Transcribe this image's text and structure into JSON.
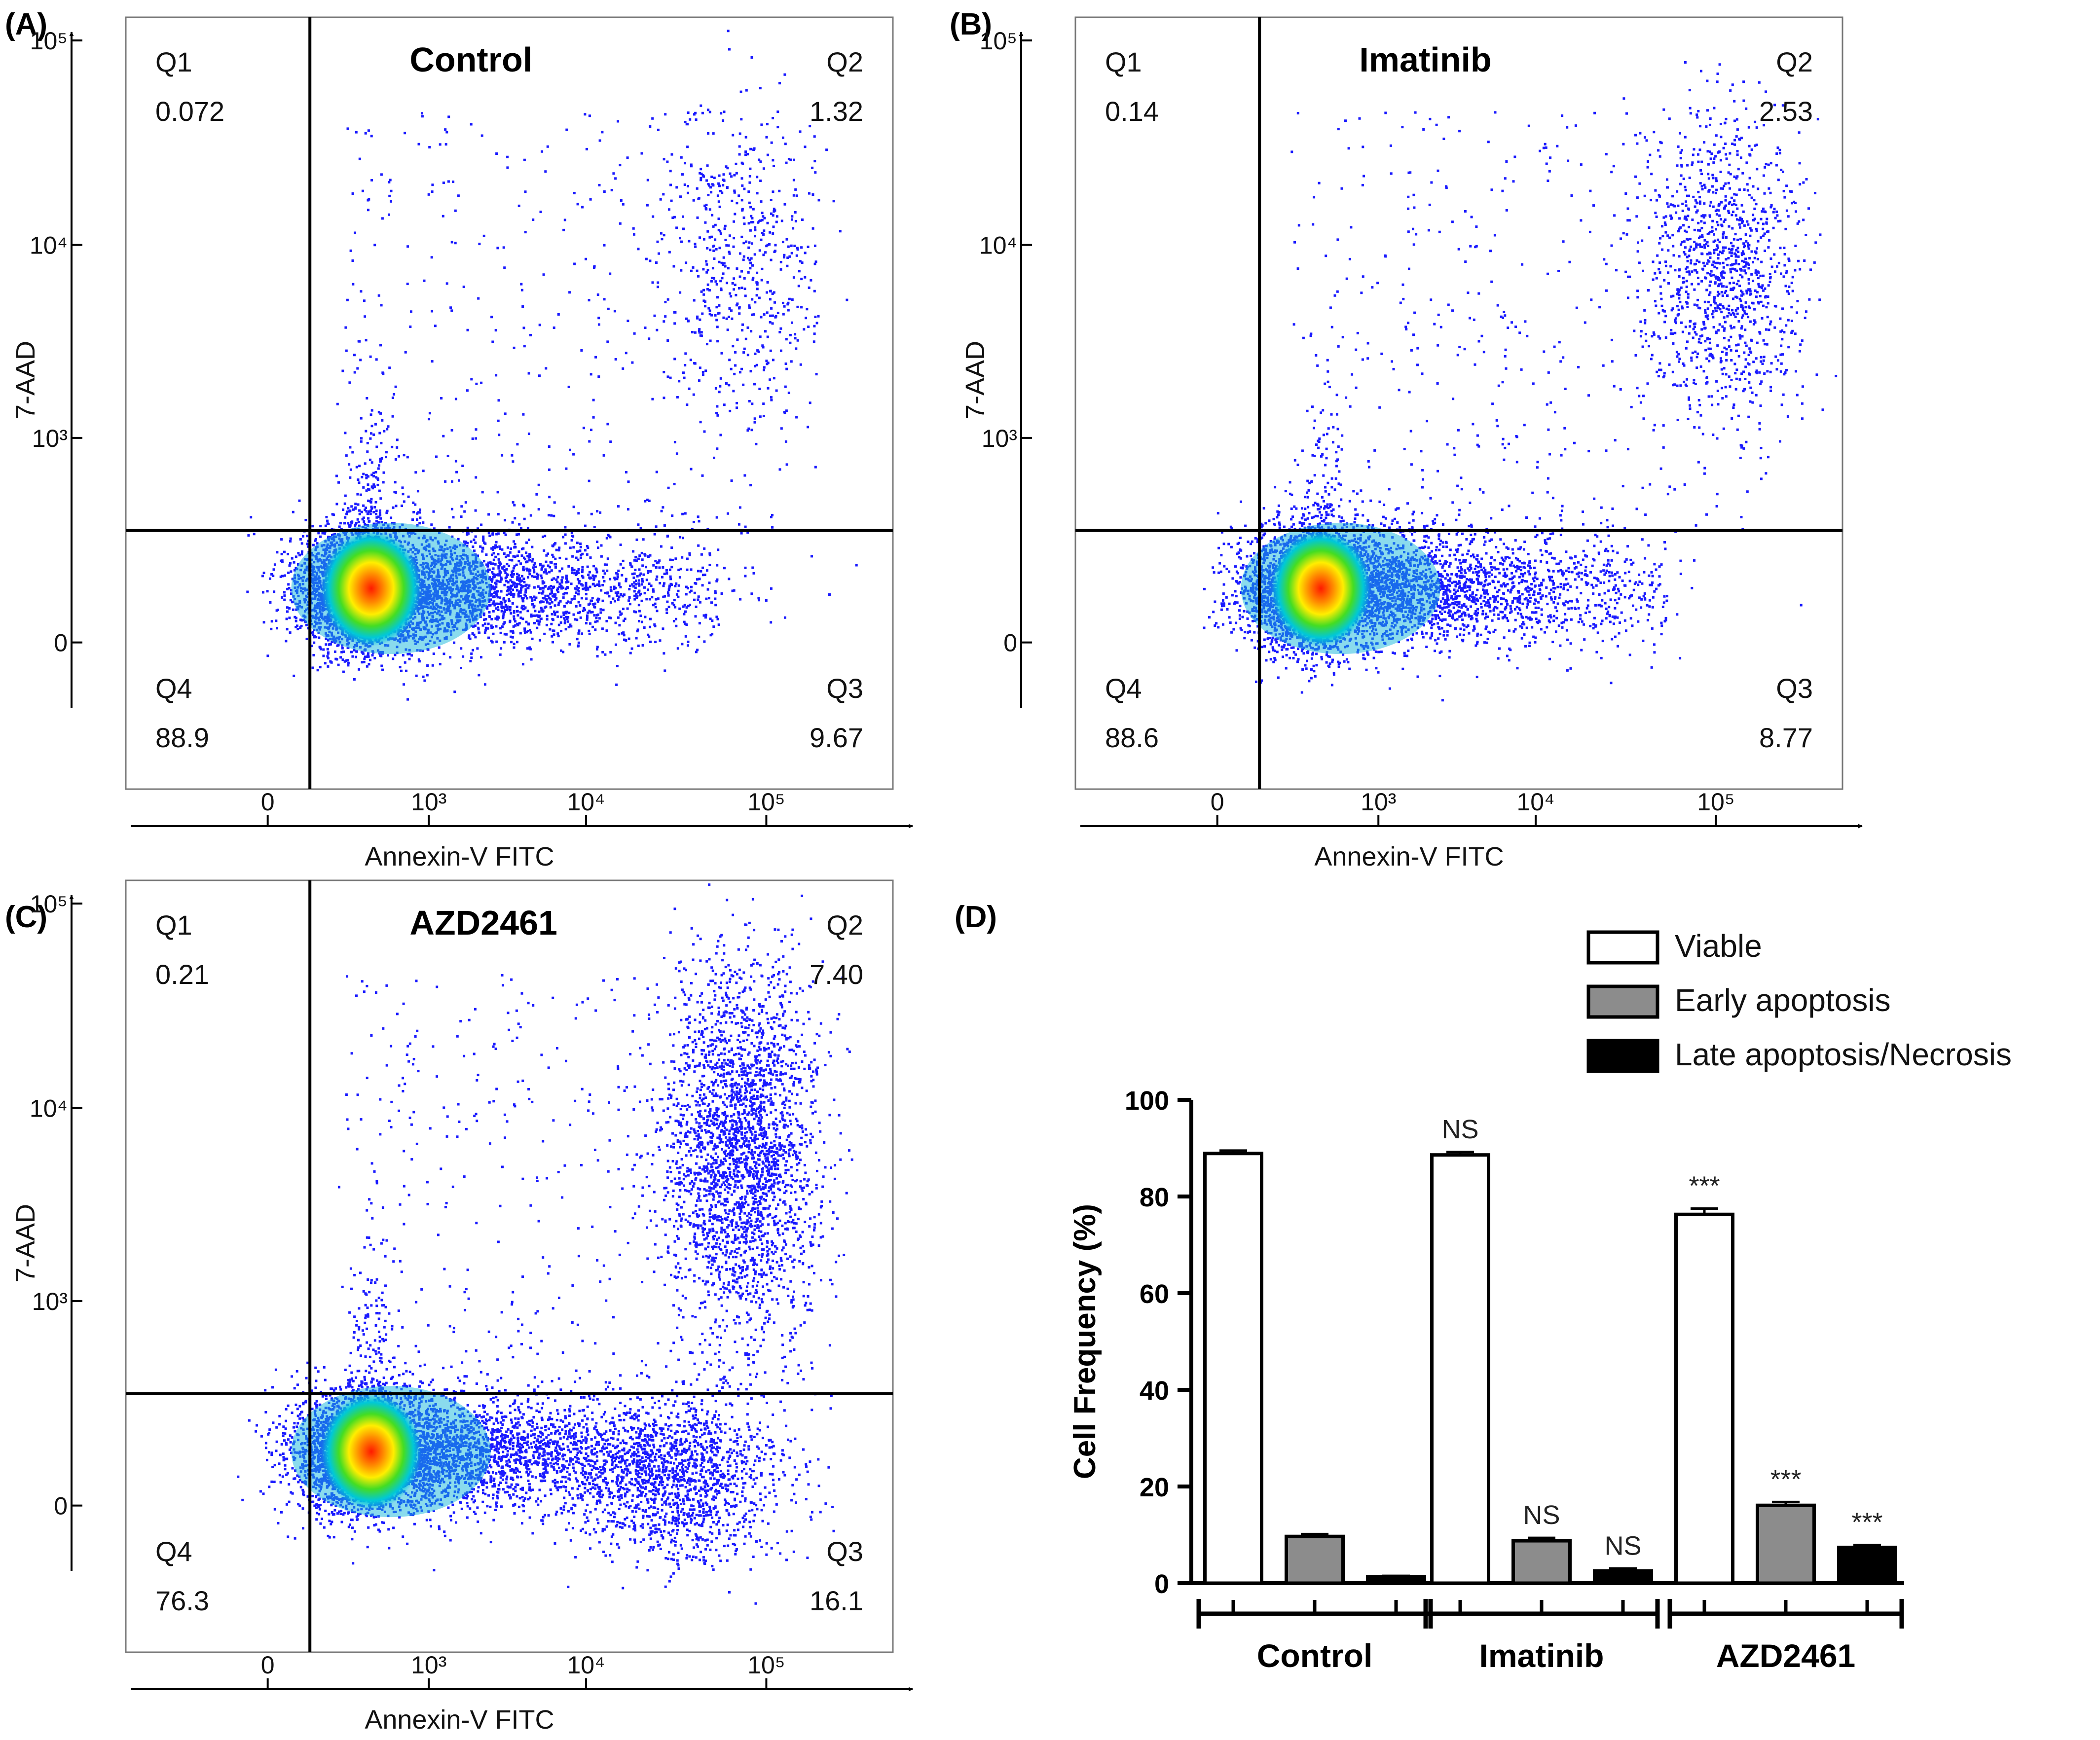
{
  "figure": {
    "panel_labels": [
      "(A)",
      "(B)",
      "(C)",
      "(D)"
    ]
  },
  "flow_panels": [
    {
      "panel": "(A)",
      "title": "Control",
      "quadrants": {
        "Q1": "0.072",
        "Q2": "1.32",
        "Q3": "9.67",
        "Q4": "88.9"
      },
      "late_density": "sparse"
    },
    {
      "panel": "(B)",
      "title": "Imatinib",
      "quadrants": {
        "Q1": "0.14",
        "Q2": "2.53",
        "Q3": "8.77",
        "Q4": "88.6"
      },
      "late_density": "medium"
    },
    {
      "panel": "(C)",
      "title": "AZD2461",
      "quadrants": {
        "Q1": "0.21",
        "Q2": "7.40",
        "Q3": "16.1",
        "Q4": "76.3"
      },
      "late_density": "dense"
    }
  ],
  "flow_axes": {
    "xlabel": "Annexin-V FITC",
    "ylabel": "7-AAD",
    "x_ticks": [
      "0",
      "10³",
      "10⁴",
      "10⁵"
    ],
    "y_ticks": [
      "0",
      "10³",
      "10⁴",
      "10⁵"
    ],
    "quadrant_names": [
      "Q1",
      "Q2",
      "Q3",
      "Q4"
    ]
  },
  "chart_data": [
    {
      "type": "scatter",
      "subtype": "flow-cytometry-density",
      "panel": "(A)",
      "title": "Control",
      "xlabel": "Annexin-V FITC",
      "ylabel": "7-AAD",
      "x_scale": "biexponential",
      "y_scale": "biexponential",
      "x_ticks": [
        "0",
        "10³",
        "10⁴",
        "10⁵"
      ],
      "y_ticks": [
        "0",
        "10³",
        "10⁴",
        "10⁵"
      ],
      "quadrant_percent": {
        "Q1": 0.072,
        "Q2": 1.32,
        "Q3": 9.67,
        "Q4": 88.9
      }
    },
    {
      "type": "scatter",
      "subtype": "flow-cytometry-density",
      "panel": "(B)",
      "title": "Imatinib",
      "xlabel": "Annexin-V FITC",
      "ylabel": "7-AAD",
      "x_scale": "biexponential",
      "y_scale": "biexponential",
      "x_ticks": [
        "0",
        "10³",
        "10⁴",
        "10⁵"
      ],
      "y_ticks": [
        "0",
        "10³",
        "10⁴",
        "10⁵"
      ],
      "quadrant_percent": {
        "Q1": 0.14,
        "Q2": 2.53,
        "Q3": 8.77,
        "Q4": 88.6
      }
    },
    {
      "type": "scatter",
      "subtype": "flow-cytometry-density",
      "panel": "(C)",
      "title": "AZD2461",
      "xlabel": "Annexin-V FITC",
      "ylabel": "7-AAD",
      "x_scale": "biexponential",
      "y_scale": "biexponential",
      "x_ticks": [
        "0",
        "10³",
        "10⁴",
        "10⁵"
      ],
      "y_ticks": [
        "0",
        "10³",
        "10⁴",
        "10⁵"
      ],
      "quadrant_percent": {
        "Q1": 0.21,
        "Q2": 7.4,
        "Q3": 16.1,
        "Q4": 76.3
      }
    },
    {
      "type": "bar",
      "panel": "(D)",
      "ylabel": "Cell Frequency (%)",
      "ylim": [
        0,
        100
      ],
      "yticks": [
        0,
        20,
        40,
        60,
        80,
        100
      ],
      "categories": [
        "Control",
        "Imatinib",
        "AZD2461"
      ],
      "series": [
        {
          "name": "Viable",
          "color": "#ffffff",
          "values": [
            88.9,
            88.6,
            76.3
          ],
          "errors": [
            0.6,
            0.6,
            1.2
          ],
          "annotations": [
            "",
            "NS",
            "***"
          ]
        },
        {
          "name": "Early apoptosis",
          "color": "#8c8c8c",
          "values": [
            9.67,
            8.77,
            16.1
          ],
          "errors": [
            0.5,
            0.6,
            0.7
          ],
          "annotations": [
            "",
            "NS",
            "***"
          ]
        },
        {
          "name": "Late apoptosis/Necrosis",
          "color": "#000000",
          "values": [
            1.32,
            2.53,
            7.4
          ],
          "errors": [
            0.2,
            0.5,
            0.5
          ],
          "annotations": [
            "",
            "NS",
            "***"
          ]
        }
      ]
    }
  ]
}
